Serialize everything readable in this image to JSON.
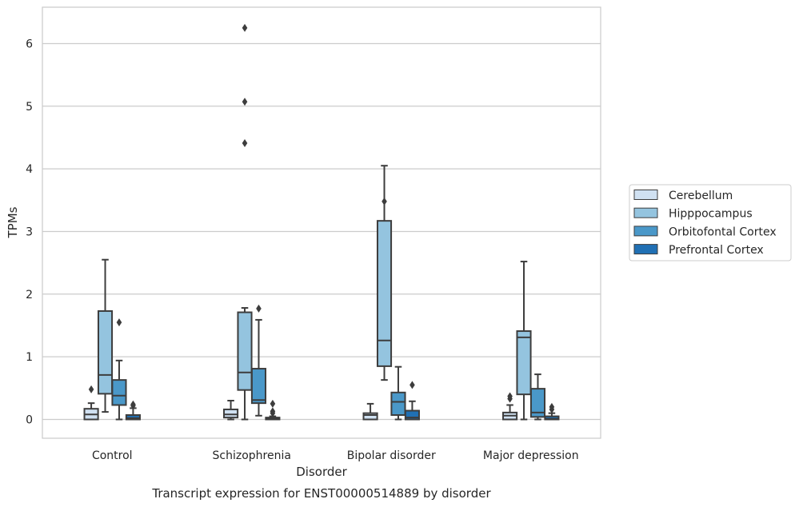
{
  "chart_data": {
    "type": "box",
    "title": "Transcript expression for ENST00000514889 by disorder",
    "xlabel": "Disorder",
    "ylabel": "TPMs",
    "ylim": [
      -0.3,
      6.58
    ],
    "yticks": [
      0,
      1,
      2,
      3,
      4,
      5,
      6
    ],
    "grid": true,
    "legend_position": "right",
    "categories": [
      "Control",
      "Schizophrenia",
      "Bipolar disorder",
      "Major depression"
    ],
    "series": [
      {
        "name": "Cerebellum",
        "color": "#d0e1f2",
        "boxes": [
          {
            "whislo": 0.0,
            "q1": 0.0,
            "med": 0.08,
            "q3": 0.17,
            "whishi": 0.26,
            "fliers": [
              0.48
            ]
          },
          {
            "whislo": 0.0,
            "q1": 0.03,
            "med": 0.08,
            "q3": 0.16,
            "whishi": 0.3,
            "fliers": []
          },
          {
            "whislo": 0.0,
            "q1": 0.0,
            "med": 0.07,
            "q3": 0.1,
            "whishi": 0.25,
            "fliers": []
          },
          {
            "whislo": 0.0,
            "q1": 0.0,
            "med": 0.06,
            "q3": 0.11,
            "whishi": 0.23,
            "fliers": [
              0.33,
              0.37
            ]
          }
        ]
      },
      {
        "name": "Hipppocampus",
        "color": "#94c4df",
        "boxes": [
          {
            "whislo": 0.12,
            "q1": 0.41,
            "med": 0.71,
            "q3": 1.73,
            "whishi": 2.55,
            "fliers": []
          },
          {
            "whislo": 0.0,
            "q1": 0.47,
            "med": 0.75,
            "q3": 1.71,
            "whishi": 1.78,
            "fliers": [
              4.41,
              5.07,
              6.25
            ]
          },
          {
            "whislo": 0.63,
            "q1": 0.85,
            "med": 1.26,
            "q3": 3.17,
            "whishi": 4.05,
            "fliers": [
              3.48
            ]
          },
          {
            "whislo": 0.0,
            "q1": 0.4,
            "med": 1.31,
            "q3": 1.41,
            "whishi": 2.52,
            "fliers": []
          }
        ]
      },
      {
        "name": "Orbitofontal Cortex",
        "color": "#4a98c9",
        "boxes": [
          {
            "whislo": 0.0,
            "q1": 0.23,
            "med": 0.38,
            "q3": 0.63,
            "whishi": 0.94,
            "fliers": [
              1.55
            ]
          },
          {
            "whislo": 0.06,
            "q1": 0.26,
            "med": 0.31,
            "q3": 0.81,
            "whishi": 1.59,
            "fliers": [
              1.77
            ]
          },
          {
            "whislo": 0.0,
            "q1": 0.07,
            "med": 0.28,
            "q3": 0.43,
            "whishi": 0.84,
            "fliers": []
          },
          {
            "whislo": 0.0,
            "q1": 0.04,
            "med": 0.11,
            "q3": 0.49,
            "whishi": 0.72,
            "fliers": []
          }
        ]
      },
      {
        "name": "Prefrontal Cortex",
        "color": "#2070b4",
        "boxes": [
          {
            "whislo": 0.0,
            "q1": 0.0,
            "med": 0.02,
            "q3": 0.07,
            "whishi": 0.18,
            "fliers": [
              0.22,
              0.24
            ]
          },
          {
            "whislo": 0.0,
            "q1": 0.0,
            "med": 0.01,
            "q3": 0.03,
            "whishi": 0.05,
            "fliers": [
              0.1,
              0.13,
              0.25
            ]
          },
          {
            "whislo": 0.0,
            "q1": 0.0,
            "med": 0.03,
            "q3": 0.14,
            "whishi": 0.29,
            "fliers": [
              0.55
            ]
          },
          {
            "whislo": 0.0,
            "q1": 0.0,
            "med": 0.01,
            "q3": 0.05,
            "whishi": 0.1,
            "fliers": [
              0.16,
              0.2
            ]
          }
        ]
      }
    ]
  }
}
